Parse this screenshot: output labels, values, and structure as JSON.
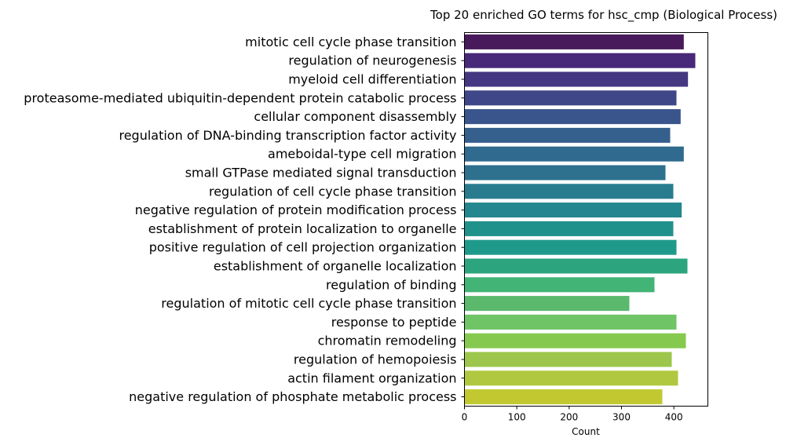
{
  "chart_data": {
    "type": "bar",
    "orientation": "horizontal",
    "title": "Top 20 enriched GO terms for hsc_cmp (Biological Process)",
    "xlabel": "Count",
    "ylabel": "",
    "xlim": [
      0,
      465
    ],
    "xticks": [
      0,
      100,
      200,
      300,
      400
    ],
    "grid": false,
    "categories": [
      "mitotic cell cycle phase transition",
      "regulation of neurogenesis",
      "myeloid cell differentiation",
      "proteasome-mediated ubiquitin-dependent protein catabolic process",
      "cellular component disassembly",
      "regulation of DNA-binding transcription factor activity",
      "ameboidal-type cell migration",
      "small GTPase mediated signal transduction",
      "regulation of cell cycle phase transition",
      "negative regulation of protein modification process",
      "establishment of protein localization to organelle",
      "positive regulation of cell projection organization",
      "establishment of organelle localization",
      "regulation of binding",
      "regulation of mitotic cell cycle phase transition",
      "response to peptide",
      "chromatin remodeling",
      "regulation of hemopoiesis",
      "actin filament organization",
      "negative regulation of phosphate metabolic process"
    ],
    "values": [
      419,
      441,
      427,
      405,
      413,
      393,
      419,
      384,
      399,
      415,
      399,
      405,
      426,
      363,
      315,
      405,
      423,
      396,
      408,
      378
    ],
    "colors": [
      "#481a5b",
      "#482878",
      "#453781",
      "#3f4788",
      "#3a548c",
      "#355f8d",
      "#306a8e",
      "#2d718e",
      "#287c8e",
      "#24868e",
      "#21918c",
      "#1f9a8a",
      "#2ca57f",
      "#42b476",
      "#5ab96c",
      "#6fc466",
      "#85ca4e",
      "#9cc64c",
      "#b0c840",
      "#c2c930"
    ]
  }
}
